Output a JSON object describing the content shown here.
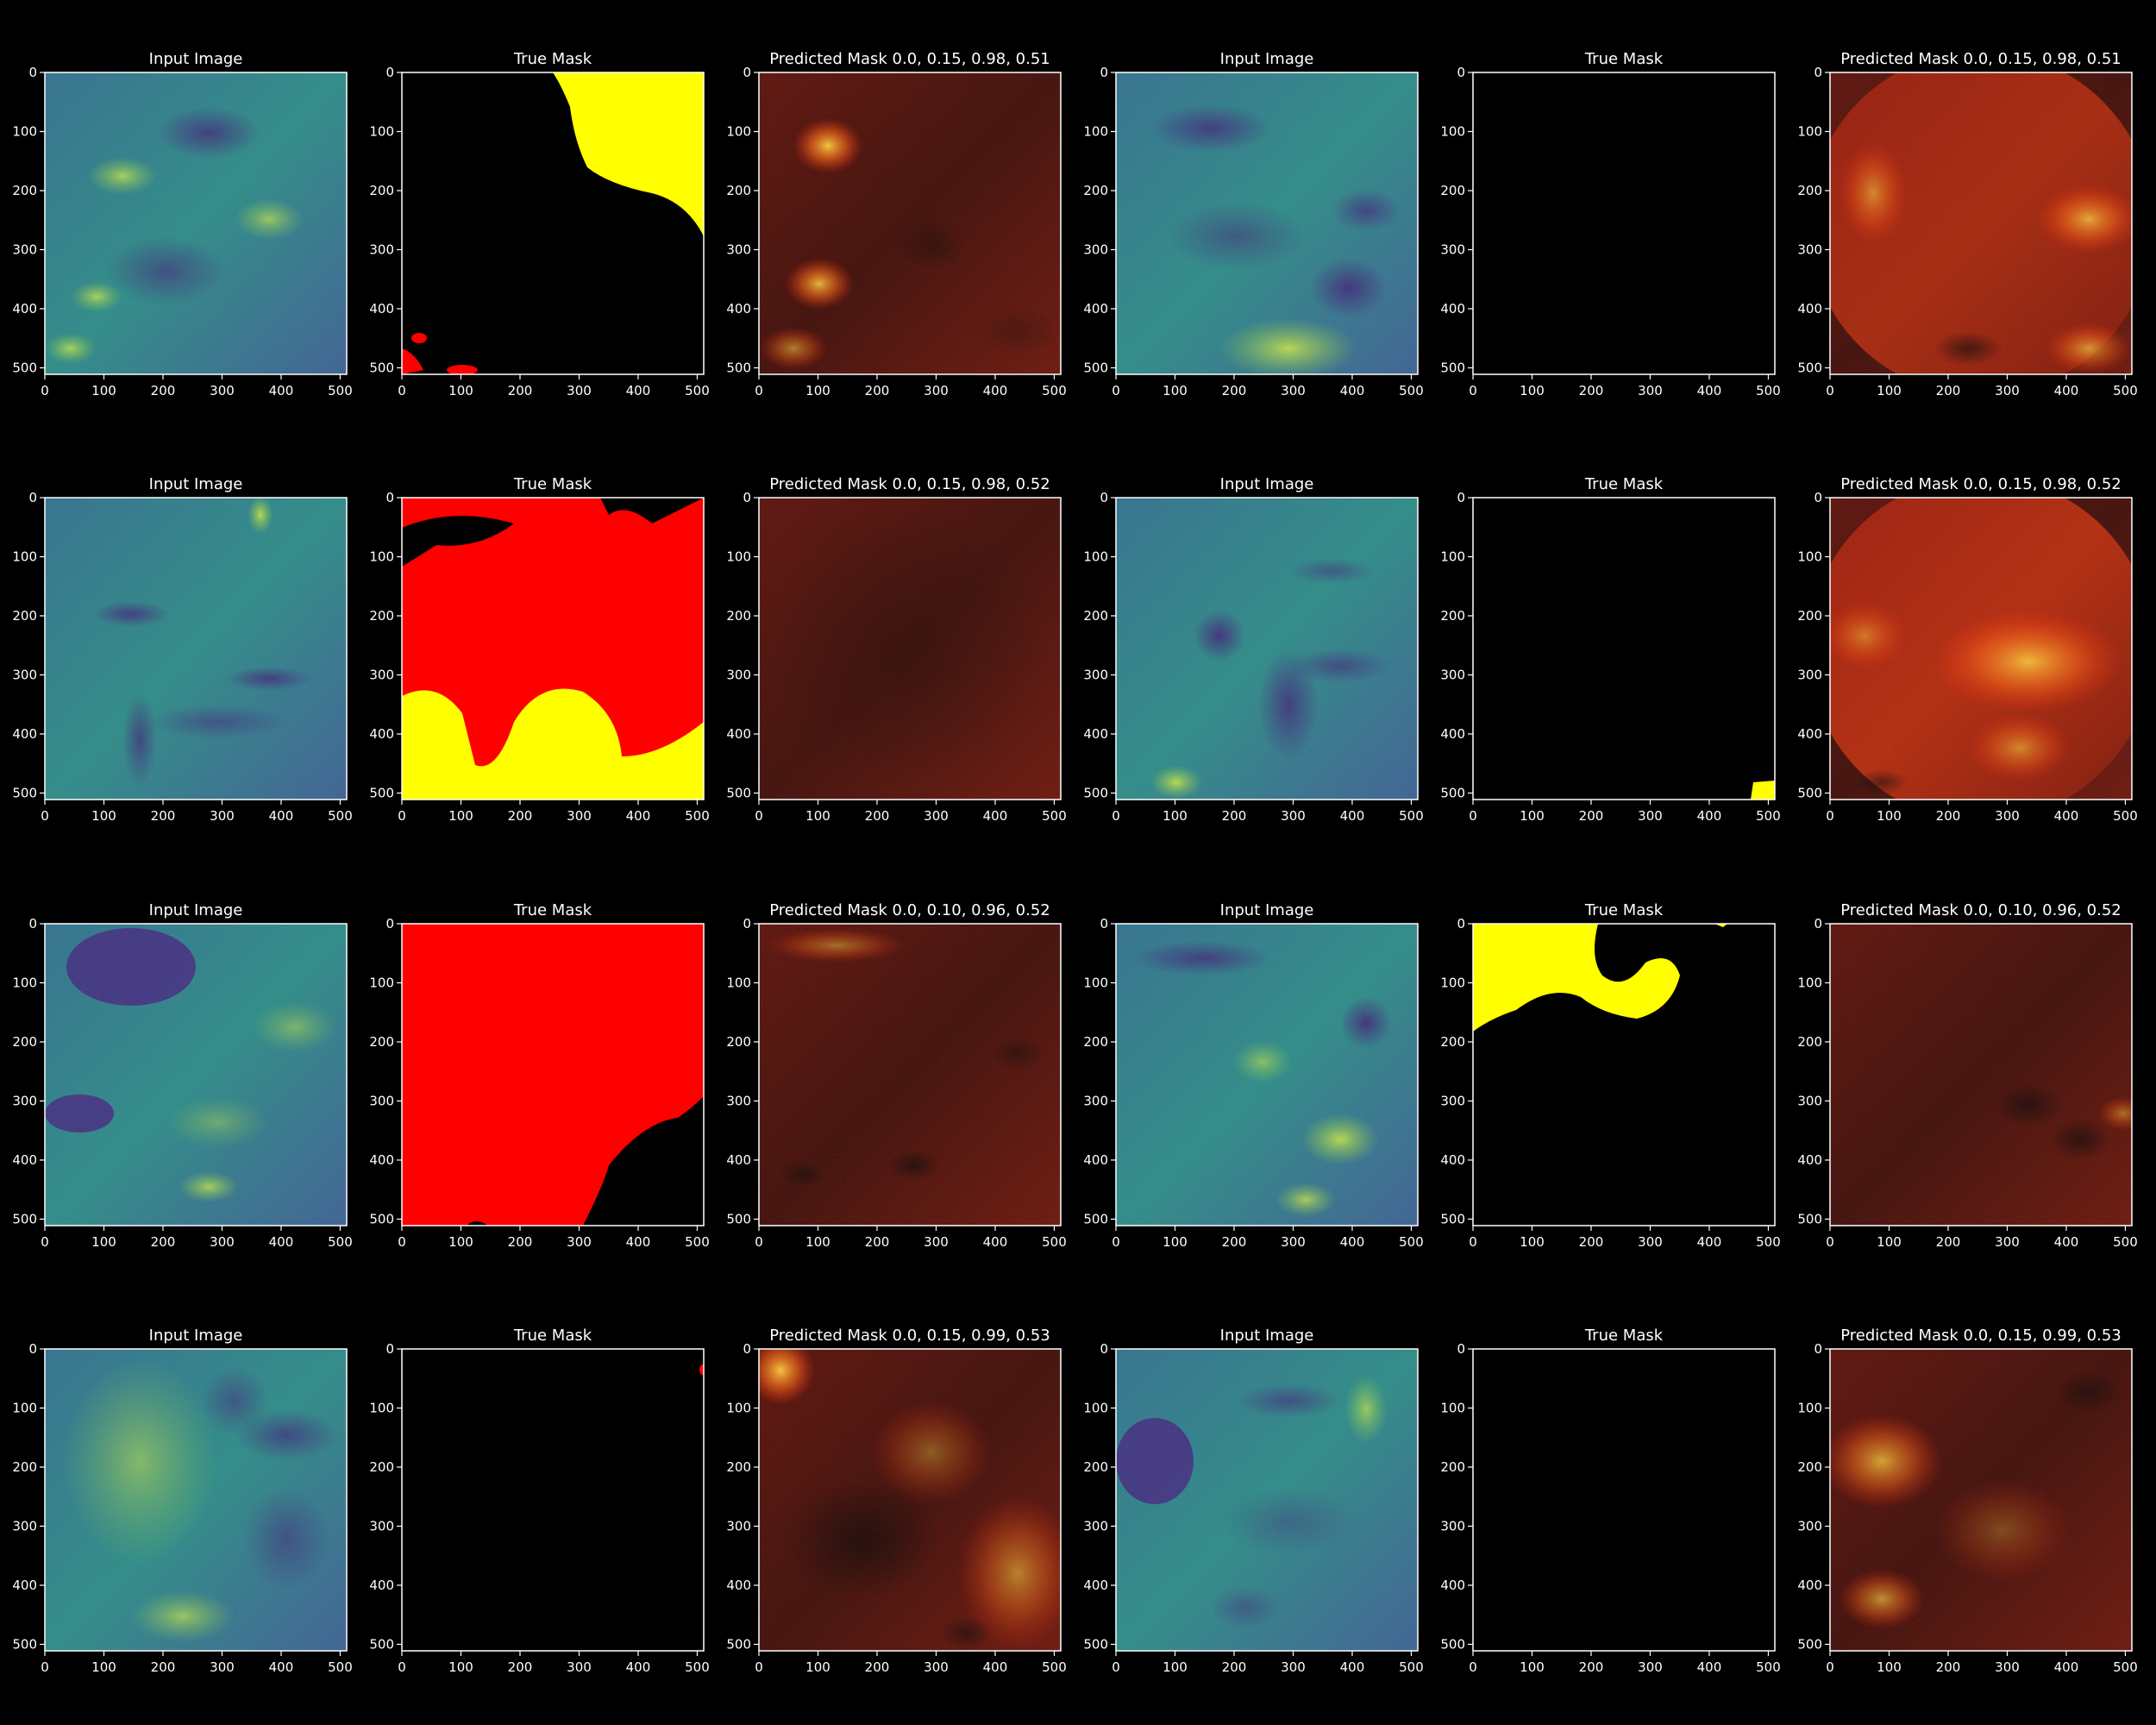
{
  "figure": {
    "background": "#000000",
    "tick_values": [
      "0",
      "100",
      "200",
      "300",
      "400",
      "500"
    ],
    "colors": {
      "viridis_dark": "#3b2c72",
      "viridis_mid": "#2c7f8a",
      "viridis_light": "#b6de2b",
      "mask_red": "#ff0000",
      "mask_yellow": "#ffff00",
      "pred_dark_red": "#3a0a04"
    },
    "rows": [
      {
        "panels": [
          {
            "title": "Input Image",
            "kind": "input"
          },
          {
            "title": "True Mask",
            "kind": "true-mask"
          },
          {
            "title": "Predicted Mask 0.0, 0.15, 0.98, 0.51",
            "kind": "predicted"
          },
          {
            "title": "Input Image",
            "kind": "input"
          },
          {
            "title": "True Mask",
            "kind": "true-mask"
          },
          {
            "title": "Predicted Mask 0.0, 0.15, 0.98, 0.51",
            "kind": "predicted"
          }
        ]
      },
      {
        "panels": [
          {
            "title": "Input Image",
            "kind": "input"
          },
          {
            "title": "True Mask",
            "kind": "true-mask"
          },
          {
            "title": "Predicted Mask 0.0, 0.15, 0.98, 0.52",
            "kind": "predicted"
          },
          {
            "title": "Input Image",
            "kind": "input"
          },
          {
            "title": "True Mask",
            "kind": "true-mask"
          },
          {
            "title": "Predicted Mask 0.0, 0.15, 0.98, 0.52",
            "kind": "predicted"
          }
        ]
      },
      {
        "panels": [
          {
            "title": "Input Image",
            "kind": "input"
          },
          {
            "title": "True Mask",
            "kind": "true-mask"
          },
          {
            "title": "Predicted Mask 0.0, 0.10, 0.96, 0.52",
            "kind": "predicted"
          },
          {
            "title": "Input Image",
            "kind": "input"
          },
          {
            "title": "True Mask",
            "kind": "true-mask"
          },
          {
            "title": "Predicted Mask 0.0, 0.10, 0.96, 0.52",
            "kind": "predicted"
          }
        ]
      },
      {
        "panels": [
          {
            "title": "Input Image",
            "kind": "input"
          },
          {
            "title": "True Mask",
            "kind": "true-mask"
          },
          {
            "title": "Predicted Mask 0.0, 0.15, 0.99, 0.53",
            "kind": "predicted"
          },
          {
            "title": "Input Image",
            "kind": "input"
          },
          {
            "title": "True Mask",
            "kind": "true-mask"
          },
          {
            "title": "Predicted Mask 0.0, 0.15, 0.99, 0.53",
            "kind": "predicted"
          }
        ]
      }
    ]
  }
}
